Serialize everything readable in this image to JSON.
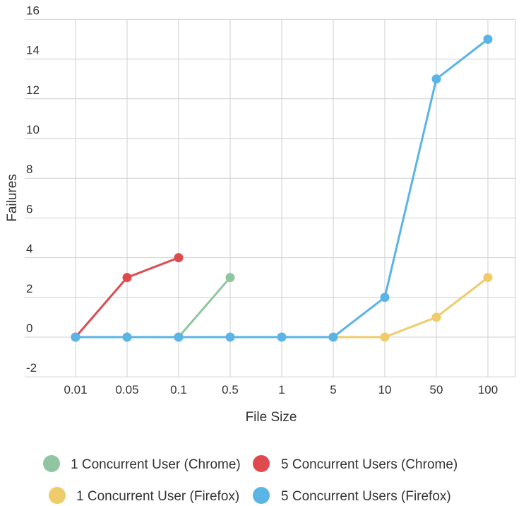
{
  "chart_data": {
    "type": "line",
    "title": "",
    "xlabel": "File Size",
    "ylabel": "Failures",
    "categories": [
      "0.01",
      "0.05",
      "0.1",
      "0.5",
      "1",
      "5",
      "10",
      "50",
      "100"
    ],
    "yticks": [
      "-2",
      "0",
      "2",
      "4",
      "6",
      "8",
      "10",
      "12",
      "14",
      "16"
    ],
    "ylim": [
      -2,
      16
    ],
    "grid": true,
    "legend_position": "bottom",
    "series": [
      {
        "name": "1 Concurrent User (Chrome)",
        "color": "#8fc6a0",
        "values": [
          0,
          0,
          0,
          3,
          null,
          null,
          null,
          null,
          null
        ]
      },
      {
        "name": "5 Concurrent Users (Chrome)",
        "color": "#dd4b4e",
        "values": [
          0,
          3,
          4,
          null,
          null,
          null,
          null,
          null,
          null
        ]
      },
      {
        "name": "1 Concurrent User (Firefox)",
        "color": "#f0cb6a",
        "values": [
          null,
          null,
          null,
          null,
          null,
          0,
          0,
          1,
          3
        ]
      },
      {
        "name": "5 Concurrent Users (Firefox)",
        "color": "#5ab4e5",
        "values": [
          0,
          0,
          0,
          0,
          0,
          0,
          2,
          13,
          15
        ]
      }
    ],
    "draw_order": [
      0,
      1,
      2,
      3
    ]
  }
}
